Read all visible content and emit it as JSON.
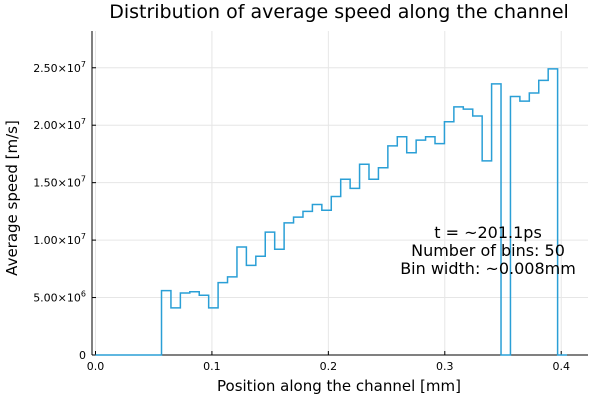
{
  "chart_data": {
    "type": "line",
    "step": "histogram",
    "title": "Distribution of average speed along the channel",
    "xlabel": "Position along the channel [mm]",
    "ylabel": "Average speed [m/s]",
    "xlim": [
      -0.003,
      0.423
    ],
    "ylim": [
      0,
      28200000
    ],
    "x_ticks": [
      0.0,
      0.1,
      0.2,
      0.3,
      0.4
    ],
    "x_tick_labels": [
      "0.0",
      "0.1",
      "0.2",
      "0.3",
      "0.4"
    ],
    "y_ticks": [
      0,
      5000000,
      10000000,
      15000000,
      20000000,
      25000000
    ],
    "y_tick_labels": [
      {
        "mant": "0",
        "exp": ""
      },
      {
        "mant": "5.00×10",
        "exp": "6"
      },
      {
        "mant": "1.00×10",
        "exp": "7"
      },
      {
        "mant": "1.50×10",
        "exp": "7"
      },
      {
        "mant": "2.00×10",
        "exp": "7"
      },
      {
        "mant": "2.50×10",
        "exp": "7"
      }
    ],
    "grid": true,
    "legend": "none",
    "color": "#2a9fd6",
    "bin_edges_start": 0.0,
    "bin_width": 0.0081,
    "series": [
      {
        "values": [
          0,
          0,
          0,
          0,
          0,
          0,
          0,
          5600000,
          4100000,
          5400000,
          5500000,
          5200000,
          4100000,
          6300000,
          6800000,
          9400000,
          7800000,
          8600000,
          10700000,
          9200000,
          11500000,
          12000000,
          12500000,
          13100000,
          12600000,
          13800000,
          15300000,
          14500000,
          16600000,
          15300000,
          16300000,
          18200000,
          19000000,
          17600000,
          18700000,
          19000000,
          18400000,
          20300000,
          21600000,
          21400000,
          20800000,
          16900000,
          23600000,
          0,
          22500000,
          22100000,
          22800000,
          23900000,
          24900000,
          0
        ]
      }
    ]
  },
  "annotation": {
    "lines": [
      "t = ~201.1ps",
      "Number of bins: 50",
      "Bin width: ~0.008mm"
    ]
  }
}
